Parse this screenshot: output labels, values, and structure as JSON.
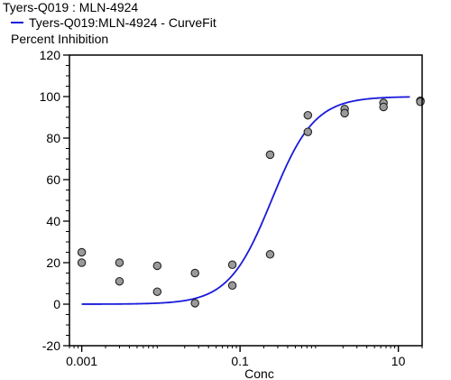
{
  "header": {
    "title": "Tyers-Q019  : MLN-4924",
    "legend_label": "Tyers-Q019:MLN-4924 - CurveFit",
    "y_axis_label": "Percent Inhibition"
  },
  "colors": {
    "curve": "#1a1adc",
    "point_fill": "#9a9a9a",
    "point_stroke": "#222222",
    "axis": "#000000"
  },
  "chart_data": {
    "type": "scatter",
    "title": "Tyers-Q019  : MLN-4924",
    "xlabel": "Conc",
    "ylabel": "Percent Inhibition",
    "xscale": "log",
    "xlim": [
      0.0007,
      20
    ],
    "ylim": [
      -20,
      120
    ],
    "x_ticks": [
      0.001,
      0.1,
      10
    ],
    "x_tick_labels": [
      "0.001",
      "0.1",
      "10"
    ],
    "y_ticks": [
      -20,
      0,
      20,
      40,
      60,
      80,
      100,
      120
    ],
    "y_tick_labels": [
      "-20",
      "0",
      "20",
      "40",
      "60",
      "80",
      "100",
      "120"
    ],
    "grid": false,
    "legend_position": "top-left",
    "series": [
      {
        "name": "Tyers-Q019:MLN-4924 - CurveFit",
        "kind": "line",
        "model": "four-parameter logistic",
        "params": {
          "bottom": 0,
          "top": 100,
          "ec50": 0.25,
          "hill": 1.6
        }
      },
      {
        "kind": "scatter",
        "points": [
          {
            "x": 0.001,
            "y": 25
          },
          {
            "x": 0.001,
            "y": 20
          },
          {
            "x": 0.003,
            "y": 20
          },
          {
            "x": 0.003,
            "y": 11
          },
          {
            "x": 0.009,
            "y": 18.5
          },
          {
            "x": 0.009,
            "y": 6
          },
          {
            "x": 0.027,
            "y": 15
          },
          {
            "x": 0.027,
            "y": 0.5
          },
          {
            "x": 0.08,
            "y": 19
          },
          {
            "x": 0.08,
            "y": 9
          },
          {
            "x": 0.24,
            "y": 72
          },
          {
            "x": 0.24,
            "y": 24
          },
          {
            "x": 0.72,
            "y": 91
          },
          {
            "x": 0.72,
            "y": 83
          },
          {
            "x": 2.1,
            "y": 94
          },
          {
            "x": 2.1,
            "y": 92
          },
          {
            "x": 6.5,
            "y": 97
          },
          {
            "x": 6.5,
            "y": 95
          },
          {
            "x": 19,
            "y": 98
          },
          {
            "x": 19,
            "y": 97.5
          }
        ]
      }
    ]
  }
}
